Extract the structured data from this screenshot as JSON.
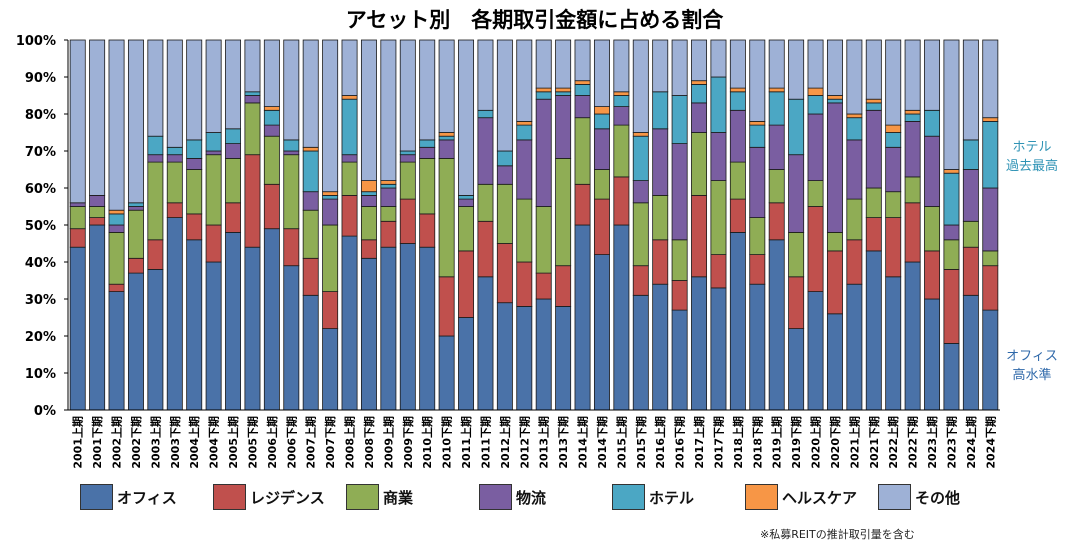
{
  "chart_data": {
    "type": "bar",
    "stacked": true,
    "title": "アセット別　各期取引金額に占める割合",
    "categories": [
      "2001上期",
      "2001下期",
      "2002上期",
      "2002下期",
      "2003上期",
      "2003下期",
      "2004上期",
      "2004下期",
      "2005上期",
      "2005下期",
      "2006上期",
      "2006下期",
      "2007上期",
      "2007下期",
      "2008上期",
      "2008下期",
      "2009上期",
      "2009下期",
      "2010上期",
      "2010下期",
      "2011上期",
      "2011下期",
      "2012上期",
      "2012下期",
      "2013上期",
      "2013下期",
      "2014上期",
      "2014下期",
      "2015上期",
      "2015下期",
      "2016上期",
      "2016下期",
      "2017上期",
      "2017下期",
      "2018上期",
      "2018下期",
      "2019上期",
      "2019下期",
      "2020上期",
      "2020下期",
      "2021上期",
      "2021下期",
      "2022上期",
      "2022下期",
      "2023上期",
      "2023下期",
      "2024上期",
      "2024下期"
    ],
    "yticks": [
      "0%",
      "10%",
      "20%",
      "30%",
      "40%",
      "50%",
      "60%",
      "70%",
      "80%",
      "90%",
      "100%"
    ],
    "ylim": [
      0,
      100
    ],
    "series": [
      {
        "name": "オフィス",
        "color": "#4a72a8",
        "values": [
          44,
          50,
          32,
          37,
          38,
          52,
          46,
          40,
          48,
          44,
          49,
          39,
          31,
          22,
          47,
          41,
          44,
          45,
          44,
          20,
          25,
          36,
          29,
          28,
          30,
          28,
          50,
          42,
          50,
          31,
          34,
          27,
          36,
          33,
          48,
          34,
          46,
          22,
          32,
          26,
          34,
          43,
          36,
          40,
          30,
          18,
          31,
          27
        ]
      },
      {
        "name": "レジデンス",
        "color": "#c0504d",
        "values": [
          5,
          2,
          2,
          4,
          8,
          4,
          7,
          10,
          8,
          25,
          12,
          10,
          10,
          10,
          11,
          5,
          7,
          12,
          9,
          16,
          18,
          15,
          16,
          12,
          7,
          11,
          11,
          15,
          13,
          8,
          12,
          8,
          22,
          9,
          9,
          8,
          10,
          14,
          23,
          17,
          12,
          9,
          16,
          16,
          13,
          20,
          13,
          12
        ]
      },
      {
        "name": "商業",
        "color": "#8fad55",
        "values": [
          6,
          3,
          14,
          13,
          21,
          11,
          12,
          19,
          12,
          14,
          13,
          20,
          13,
          18,
          9,
          9,
          4,
          10,
          15,
          32,
          12,
          10,
          16,
          17,
          18,
          29,
          18,
          8,
          14,
          17,
          12,
          11,
          17,
          20,
          10,
          10,
          9,
          12,
          7,
          5,
          11,
          8,
          7,
          7,
          12,
          8,
          7,
          4
        ]
      },
      {
        "name": "物流",
        "color": "#7a5ea1",
        "values": [
          1,
          3,
          2,
          1,
          2,
          2,
          3,
          1,
          4,
          2,
          3,
          1,
          5,
          7,
          2,
          3,
          5,
          2,
          3,
          5,
          2,
          18,
          5,
          16,
          29,
          17,
          6,
          11,
          5,
          6,
          18,
          26,
          8,
          13,
          14,
          19,
          12,
          21,
          18,
          35,
          16,
          21,
          12,
          15,
          19,
          4,
          14,
          17
        ]
      },
      {
        "name": "ホテル",
        "color": "#4ba7c4",
        "values": [
          0,
          0,
          3,
          1,
          5,
          2,
          5,
          5,
          4,
          1,
          4,
          3,
          11,
          1,
          15,
          1,
          1,
          1,
          2,
          1,
          1,
          2,
          4,
          4,
          2,
          1,
          3,
          4,
          3,
          12,
          10,
          13,
          5,
          15,
          5,
          6,
          9,
          15,
          5,
          1,
          6,
          2,
          4,
          2,
          7,
          14,
          8,
          18
        ]
      },
      {
        "name": "ヘルスケア",
        "color": "#f79646",
        "values": [
          0,
          0,
          1,
          0,
          0,
          0,
          0,
          0,
          0,
          0,
          1,
          0,
          1,
          1,
          1,
          3,
          1,
          0,
          0,
          1,
          0,
          0,
          0,
          1,
          1,
          1,
          1,
          2,
          1,
          1,
          0,
          0,
          1,
          0,
          1,
          1,
          1,
          0,
          2,
          1,
          1,
          1,
          2,
          1,
          0,
          1,
          0,
          1
        ]
      },
      {
        "name": "その他",
        "color": "#9eb1d6",
        "values": [
          44,
          42,
          46,
          44,
          26,
          29,
          27,
          25,
          24,
          14,
          18,
          27,
          29,
          41,
          15,
          38,
          38,
          30,
          27,
          25,
          42,
          19,
          30,
          22,
          13,
          13,
          11,
          18,
          14,
          25,
          14,
          15,
          11,
          10,
          13,
          22,
          13,
          16,
          13,
          15,
          20,
          16,
          23,
          19,
          19,
          35,
          27,
          21
        ]
      }
    ],
    "annotations": {
      "hotel": "ホテル\n過去最高",
      "office": "オフィス\n高水準",
      "footnote": "※私募REITの推計取引量を含む"
    },
    "legend_position": "bottom",
    "grid": false
  },
  "title": "アセット別　各期取引金額に占める割合",
  "notes": {
    "hotel_line1": "ホテル",
    "hotel_line2": "過去最高",
    "office_line1": "オフィス",
    "office_line2": "高水準"
  },
  "footnote": "※私募REITの推計取引量を含む"
}
